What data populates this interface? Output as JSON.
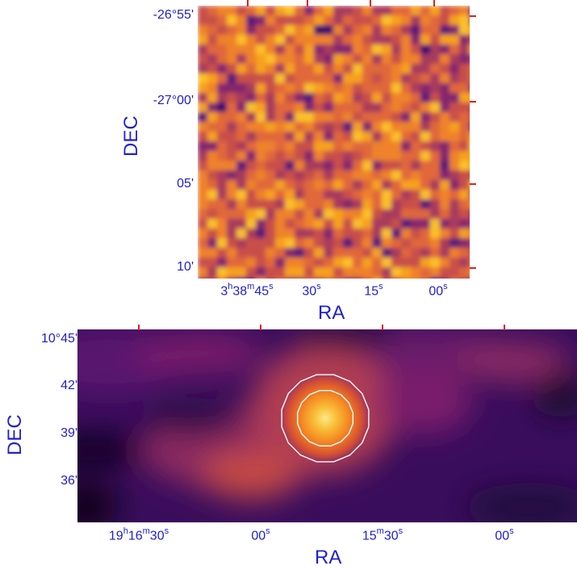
{
  "colors": {
    "text": "#2020d0",
    "tick_mark": "#e02020",
    "contour": "#ffffff",
    "colormap": "inferno"
  },
  "top_panel": {
    "y_ticks": [
      "-26°55'",
      "-27°00'",
      "05'",
      "10'"
    ],
    "x_ticks": [
      {
        "h": "3",
        "m": "38",
        "s": "45"
      },
      {
        "s_val": "30"
      },
      {
        "s_val": "15"
      },
      {
        "s_val": "00"
      }
    ],
    "xlabel": "RA",
    "ylabel": "DEC"
  },
  "bottom_panel": {
    "y_ticks": [
      "10°45'",
      "42'",
      "39'",
      "36'"
    ],
    "x_ticks": [
      {
        "h": "19",
        "m": "16",
        "s": "30"
      },
      {
        "s_val": "00"
      },
      {
        "m": "15",
        "s": "30"
      },
      {
        "s_val": "00"
      }
    ],
    "xlabel": "RA",
    "ylabel": "DEC",
    "contours": 2
  }
}
